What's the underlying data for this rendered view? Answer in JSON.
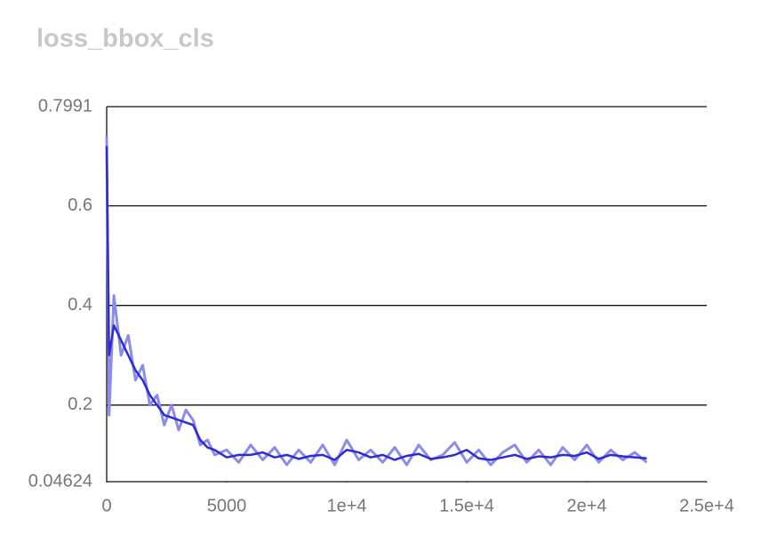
{
  "chart_data": {
    "type": "line",
    "title": "loss_bbox_cls",
    "x": [
      0,
      100,
      300,
      600,
      900,
      1200,
      1500,
      1800,
      2100,
      2400,
      2700,
      3000,
      3300,
      3600,
      3900,
      4200,
      4500,
      5000,
      5500,
      6000,
      6500,
      7000,
      7500,
      8000,
      8500,
      9000,
      9500,
      10000,
      10500,
      11000,
      11500,
      12000,
      12500,
      13000,
      13500,
      14000,
      14500,
      15000,
      15500,
      16000,
      16500,
      17000,
      17500,
      18000,
      18500,
      19000,
      19500,
      20000,
      20500,
      21000,
      21500,
      22000,
      22500
    ],
    "series": [
      {
        "color": "#8c8ce6",
        "values": [
          0.74,
          0.18,
          0.42,
          0.3,
          0.34,
          0.25,
          0.28,
          0.2,
          0.22,
          0.16,
          0.2,
          0.15,
          0.19,
          0.17,
          0.12,
          0.13,
          0.1,
          0.11,
          0.085,
          0.12,
          0.09,
          0.115,
          0.08,
          0.11,
          0.085,
          0.12,
          0.08,
          0.13,
          0.09,
          0.11,
          0.085,
          0.115,
          0.08,
          0.12,
          0.09,
          0.1,
          0.125,
          0.085,
          0.11,
          0.08,
          0.105,
          0.12,
          0.085,
          0.11,
          0.08,
          0.115,
          0.09,
          0.12,
          0.085,
          0.11,
          0.09,
          0.105,
          0.085
        ]
      },
      {
        "color": "#2b2bd9",
        "values": [
          0.72,
          0.3,
          0.36,
          0.33,
          0.3,
          0.27,
          0.25,
          0.22,
          0.2,
          0.18,
          0.175,
          0.17,
          0.165,
          0.16,
          0.13,
          0.115,
          0.11,
          0.095,
          0.1,
          0.1,
          0.105,
          0.095,
          0.1,
          0.092,
          0.098,
          0.1,
          0.09,
          0.11,
          0.105,
          0.095,
          0.1,
          0.09,
          0.098,
          0.102,
          0.092,
          0.095,
          0.1,
          0.11,
          0.093,
          0.09,
          0.095,
          0.1,
          0.092,
          0.097,
          0.095,
          0.1,
          0.098,
          0.105,
          0.092,
          0.1,
          0.097,
          0.095,
          0.093
        ]
      }
    ],
    "xlim": [
      0,
      25000
    ],
    "xticks": [
      0,
      5000,
      {
        "value": 10000,
        "label": "1e+4"
      },
      {
        "value": 15000,
        "label": "1.5e+4"
      },
      {
        "value": 20000,
        "label": "2e+4"
      },
      {
        "value": 25000,
        "label": "2.5e+4"
      }
    ],
    "ylim": [
      0.04624,
      0.7991
    ],
    "yticks": [
      0.04624,
      0.2,
      0.4,
      0.6,
      0.7991
    ],
    "grid": true
  }
}
